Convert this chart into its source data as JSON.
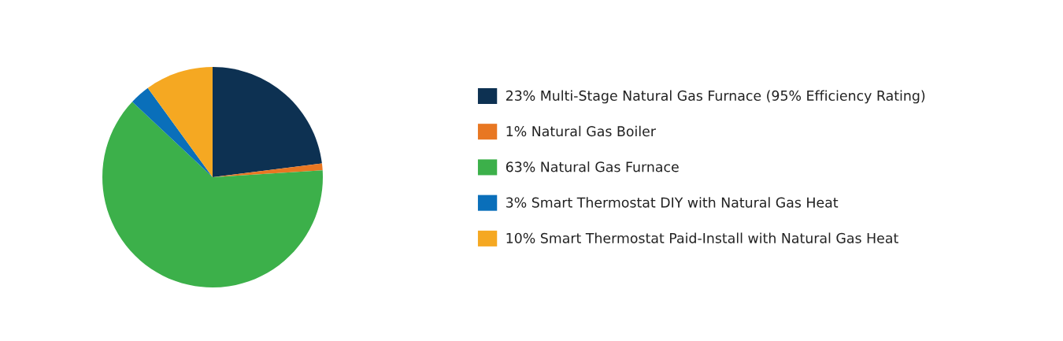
{
  "chart_data": {
    "type": "pie",
    "categories": [
      "Multi-Stage Natural Gas Furnace (95% Efficiency Rating)",
      "Natural Gas Boiler",
      "Natural Gas Furnace",
      "Smart Thermostat DIY with Natural Gas Heat",
      "Smart Thermostat Paid-Install with Natural Gas Heat"
    ],
    "values": [
      23,
      1,
      63,
      3,
      10
    ],
    "value_labels": [
      "23%",
      "1%",
      "63%",
      "3%",
      "10%"
    ],
    "colors": [
      "#0d3152",
      "#e87722",
      "#3cb04a",
      "#0a6fba",
      "#f5a822"
    ],
    "legend": "right"
  }
}
